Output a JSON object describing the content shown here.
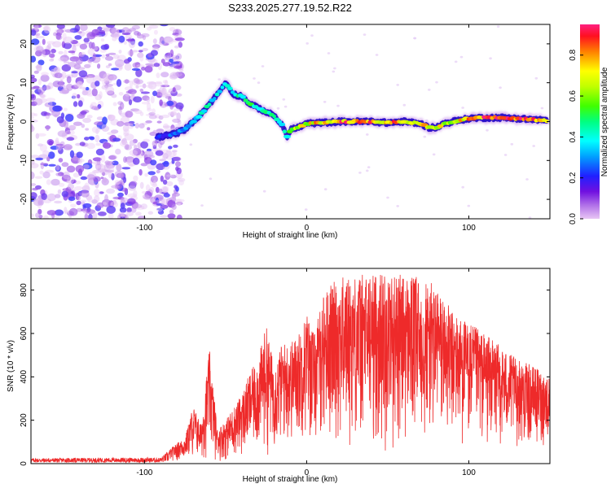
{
  "title": "S233.2025.277.19.52.R22",
  "chart_data": [
    {
      "id": "spectrogram",
      "type": "heatmap",
      "xlabel": "Height of straight line (km)",
      "ylabel": "Frequency (Hz)",
      "xlim": [
        -170,
        150
      ],
      "ylim": [
        -25,
        25
      ],
      "xticks": [
        -100,
        0,
        100
      ],
      "xtick_labels": [
        "-100",
        "0",
        "100"
      ],
      "yticks": [
        -20,
        -10,
        0,
        10,
        20
      ],
      "ytick_labels": [
        "-20",
        "-10",
        "0",
        "10",
        "20"
      ],
      "colorbar": {
        "label": "Normalized spectral amplitude",
        "range": [
          0,
          0.95
        ],
        "ticks": [
          0.0,
          0.2,
          0.4,
          0.6,
          0.8
        ],
        "tick_labels": [
          "0.0",
          "0.2",
          "0.4",
          "0.6",
          "0.8"
        ]
      },
      "noise_region_x": [
        -170,
        -85
      ],
      "ridge": {
        "x": [
          -92,
          -85,
          -80,
          -75,
          -70,
          -65,
          -60,
          -55,
          -50,
          -45,
          -40,
          -35,
          -30,
          -25,
          -20,
          -15,
          -12,
          -10,
          -5,
          0,
          10,
          20,
          30,
          40,
          50,
          60,
          70,
          75,
          80,
          85,
          90,
          100,
          110,
          120,
          130,
          140,
          148
        ],
        "y": [
          -4,
          -3.5,
          -3,
          -2,
          0,
          2,
          4.5,
          7,
          10,
          7,
          6.5,
          4.5,
          3.5,
          2.5,
          1.5,
          -1,
          -4,
          -2,
          -1.5,
          -0.5,
          -0.3,
          0,
          0,
          0,
          -0.3,
          0,
          -0.5,
          -1.5,
          -1.5,
          -0.5,
          0,
          0.8,
          1,
          1,
          0.8,
          0.5,
          0.3
        ],
        "amp": [
          0.2,
          0.25,
          0.3,
          0.3,
          0.35,
          0.4,
          0.45,
          0.4,
          0.5,
          0.45,
          0.45,
          0.5,
          0.5,
          0.45,
          0.45,
          0.4,
          0.4,
          0.6,
          0.7,
          0.75,
          0.8,
          0.85,
          0.9,
          0.85,
          0.85,
          0.8,
          0.85,
          0.85,
          0.7,
          0.7,
          0.75,
          0.85,
          0.9,
          0.9,
          0.9,
          0.85,
          0.8
        ]
      }
    },
    {
      "id": "snr",
      "type": "line",
      "xlabel": "Height of straight line (km)",
      "ylabel": "SNR (10 * v/v)",
      "xlim": [
        -170,
        150
      ],
      "ylim": [
        0,
        900
      ],
      "xticks": [
        -100,
        0,
        100
      ],
      "xtick_labels": [
        "-100",
        "0",
        "100"
      ],
      "yticks": [
        0,
        200,
        400,
        600,
        800
      ],
      "ytick_labels": [
        "0",
        "200",
        "400",
        "600",
        "800"
      ],
      "series": [
        {
          "name": "SNR",
          "color": "#ee2a2a",
          "envelope_x": [
            -170,
            -90,
            -85,
            -80,
            -75,
            -70,
            -65,
            -60,
            -55,
            -50,
            -45,
            -40,
            -35,
            -30,
            -25,
            -20,
            -15,
            -10,
            -5,
            0,
            5,
            10,
            15,
            20,
            30,
            40,
            50,
            60,
            70,
            80,
            90,
            100,
            110,
            120,
            130,
            140,
            150
          ],
          "envelope_max": [
            25,
            28,
            60,
            95,
            120,
            270,
            180,
            530,
            160,
            200,
            260,
            320,
            420,
            480,
            640,
            450,
            560,
            560,
            600,
            700,
            600,
            780,
            830,
            860,
            870,
            880,
            885,
            870,
            860,
            820,
            700,
            650,
            600,
            540,
            480,
            450,
            400
          ],
          "envelope_min": [
            5,
            5,
            8,
            8,
            10,
            10,
            10,
            10,
            10,
            10,
            20,
            20,
            30,
            30,
            30,
            50,
            50,
            60,
            80,
            80,
            80,
            80,
            80,
            50,
            50,
            40,
            40,
            40,
            40,
            60,
            60,
            60,
            60,
            60,
            60,
            60,
            60
          ]
        }
      ]
    }
  ]
}
